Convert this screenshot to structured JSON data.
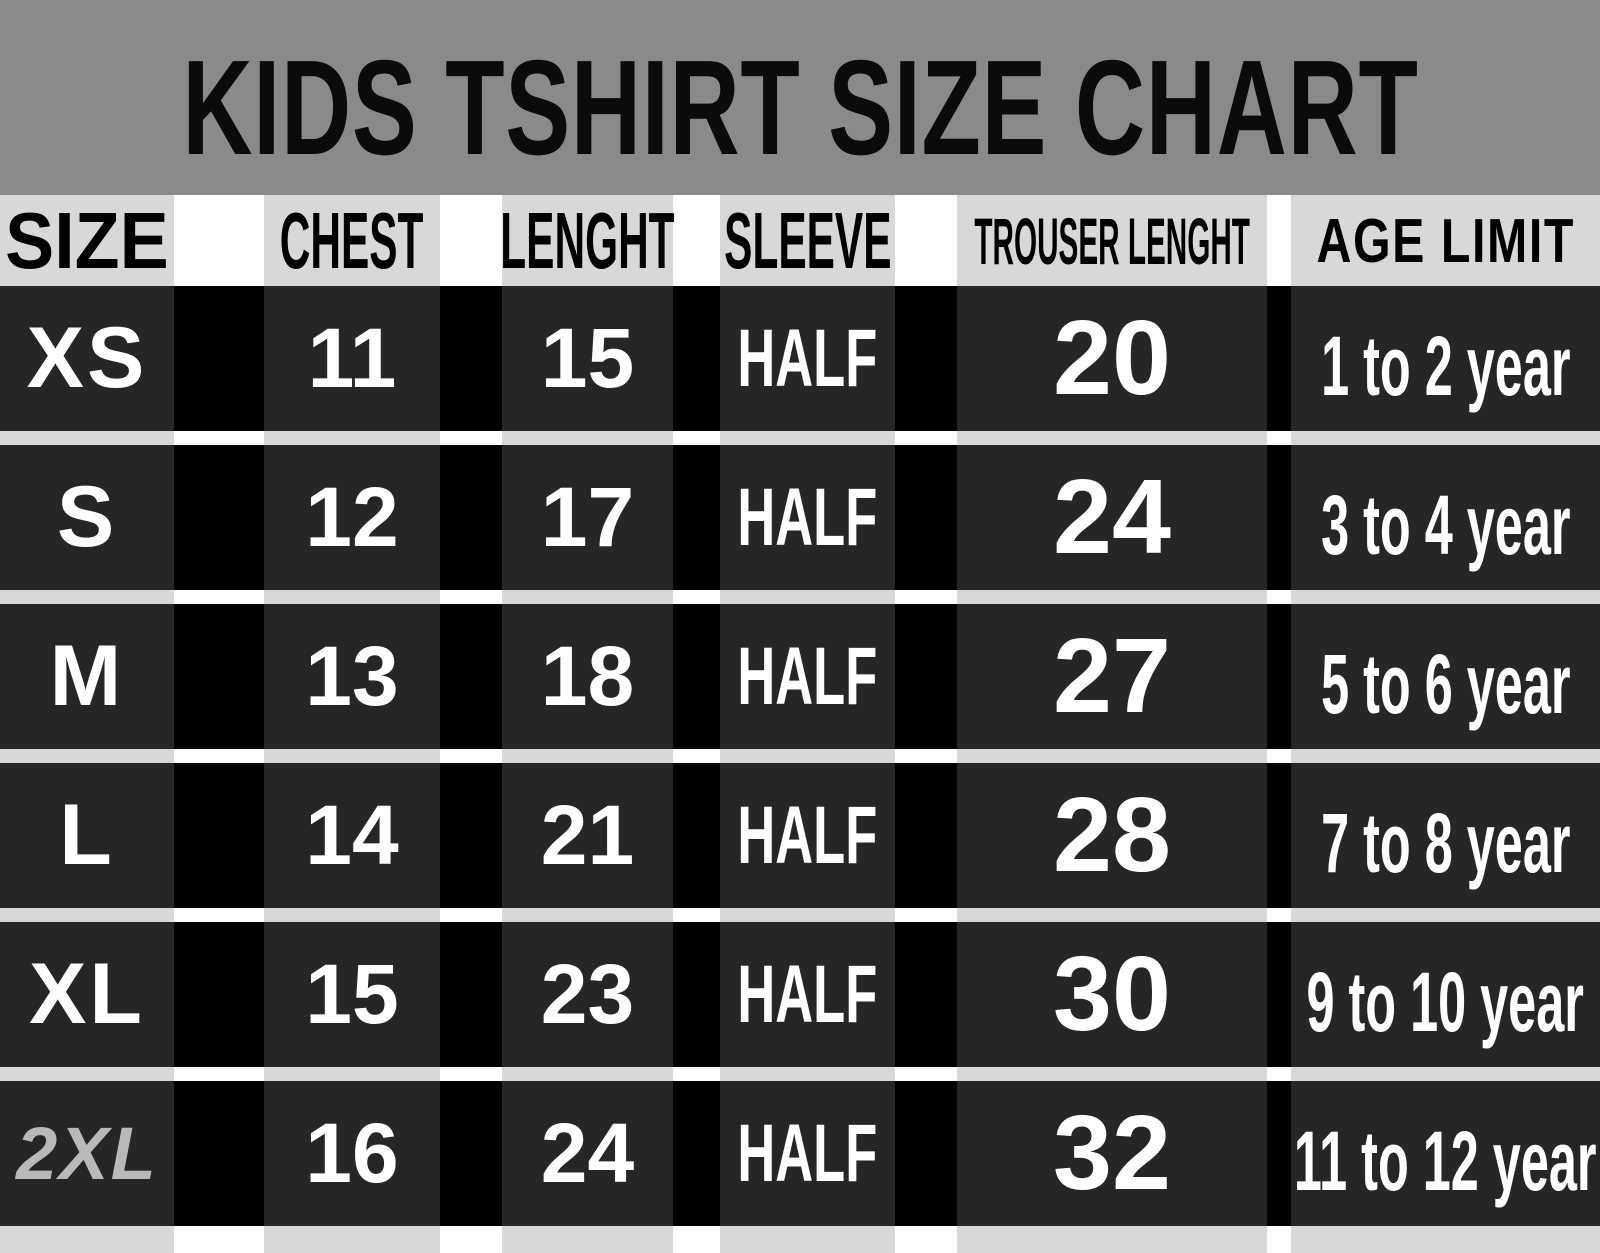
{
  "title": "KIDS TSHIRT SIZE CHART",
  "chart_data": {
    "type": "table",
    "title": "KIDS TSHIRT SIZE CHART",
    "columns": [
      "SIZE",
      "CHEST",
      "LENGHT",
      "SLEEVE",
      "TROUSER LENGHT",
      "AGE LIMIT"
    ],
    "rows": [
      [
        "XS",
        "11",
        "15",
        "HALF",
        "20",
        "1 to 2 year"
      ],
      [
        "S",
        "12",
        "17",
        "HALF",
        "24",
        "3 to 4 year"
      ],
      [
        "M",
        "13",
        "18",
        "HALF",
        "27",
        "5 to 6 year"
      ],
      [
        "L",
        "14",
        "21",
        "HALF",
        "28",
        "7 to 8 year"
      ],
      [
        "XL",
        "15",
        "23",
        "HALF",
        "30",
        "9 to 10 year"
      ],
      [
        "2XL",
        "16",
        "24",
        "HALF",
        "32",
        "11 to 12 year"
      ]
    ]
  },
  "colors": {
    "title_band": "#8a8a8a",
    "header_cell": "#d8d8d8",
    "data_cell": "#262626",
    "column_gap": "#000000",
    "row_separator": "#d8d8d8",
    "header_text": "#000000",
    "data_text": "#ffffff",
    "size_2xl_text": "#b9b9b9"
  }
}
